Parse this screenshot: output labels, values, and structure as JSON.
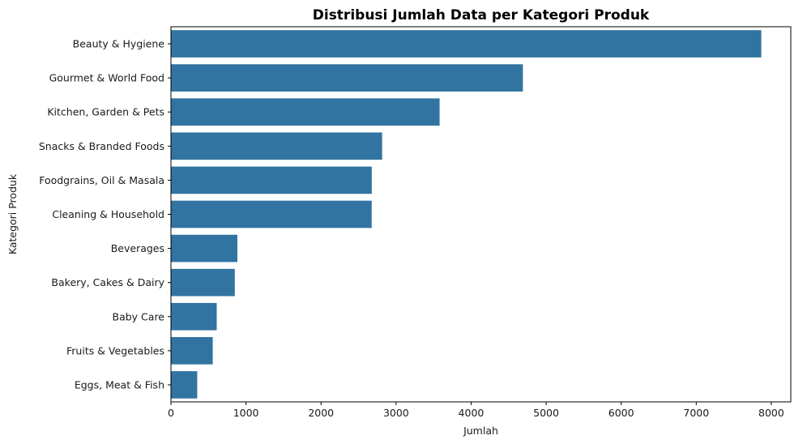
{
  "chart_data": {
    "type": "bar",
    "orientation": "horizontal",
    "title": "Distribusi Jumlah Data per Kategori Produk",
    "xlabel": "Jumlah",
    "ylabel": "Kategori Produk",
    "categories": [
      "Beauty & Hygiene",
      "Gourmet & World Food",
      "Kitchen, Garden & Pets",
      "Snacks & Branded Foods",
      "Foodgrains, Oil & Masala",
      "Cleaning & Household",
      "Beverages",
      "Bakery, Cakes & Dairy",
      "Baby Care",
      "Fruits & Vegetables",
      "Eggs, Meat & Fish"
    ],
    "values": [
      7867,
      4690,
      3580,
      2814,
      2676,
      2675,
      885,
      851,
      610,
      557,
      350
    ],
    "xlim": [
      0,
      8260
    ],
    "xticks": [
      "0",
      "1000",
      "2000",
      "3000",
      "4000",
      "5000",
      "6000",
      "7000",
      "8000"
    ],
    "grid": false,
    "legend": "none",
    "colors": {
      "bar": "#3274a1",
      "axis": "#000000",
      "text": "#1a1a1a"
    }
  }
}
